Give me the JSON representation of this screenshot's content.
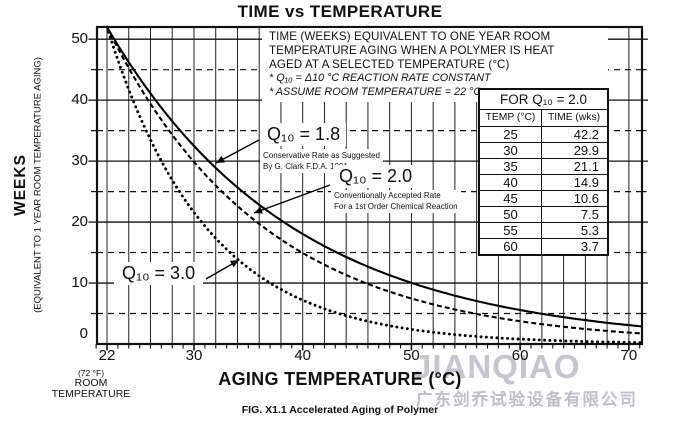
{
  "title": "TIME vs TEMPERATURE",
  "description": {
    "lines": [
      "TIME (WEEKS) EQUIVALENT TO ONE YEAR ROOM",
      "TEMPERATURE AGING WHEN A POLYMER IS HEAT",
      "AGED AT A SELECTED TEMPERATURE (°C)"
    ],
    "notes": [
      "* Q₁₀ = Δ10 °C REACTION RATE CONSTANT",
      "* ASSUME ROOM TEMPERATURE = 22 °C"
    ]
  },
  "y_axis": {
    "title": "WEEKS",
    "subtitle": "(EQUIVALENT TO 1 YEAR ROOM TEMPERATURE AGING)",
    "ticks": [
      0,
      10,
      20,
      30,
      40,
      50
    ],
    "minor_dashed": [
      5,
      15,
      25,
      35,
      45
    ]
  },
  "x_axis": {
    "title": "AGING TEMPERATURE (°C)",
    "ticks": [
      22,
      30,
      40,
      50,
      60,
      70
    ],
    "room_note": [
      "(72 °F)",
      "ROOM",
      "TEMPERATURE"
    ]
  },
  "annotations": {
    "q18_label": "Q₁₀ = 1.8",
    "q18_sub1": "Conservative Rate as Suggested",
    "q18_sub2": "By G. Clark F.D.A. 1991",
    "q20_label": "Q₁₀ = 2.0",
    "q20_sub1": "Conventionally Accepted Rate",
    "q20_sub2": "For a 1st Order Chemical Reaction",
    "q30_label": "Q₁₀ = 3.0"
  },
  "table": {
    "title": "FOR Q₁₀ = 2.0",
    "columns": [
      "TEMP (°C)",
      "TIME (wks)"
    ],
    "rows": [
      [
        "25",
        "42.2"
      ],
      [
        "30",
        "29.9"
      ],
      [
        "35",
        "21.1"
      ],
      [
        "40",
        "14.9"
      ],
      [
        "45",
        "10.6"
      ],
      [
        "50",
        "7.5"
      ],
      [
        "55",
        "5.3"
      ],
      [
        "60",
        "3.7"
      ]
    ]
  },
  "caption": "FIG. X1.1 Accelerated Aging of Polymer",
  "watermark": {
    "name": "JIANQIAO",
    "company": "广东剑乔试验设备有限公司"
  },
  "chart_data": {
    "type": "line",
    "title": "TIME vs TEMPERATURE",
    "xlabel": "AGING TEMPERATURE (°C)",
    "ylabel": "WEEKS (EQUIVALENT TO 1 YEAR ROOM TEMPERATURE AGING)",
    "xlim": [
      22,
      70
    ],
    "ylim": [
      0,
      52
    ],
    "grid": {
      "x_step_deg": 2,
      "y_solid_step": 10,
      "y_dashed_step": 10
    },
    "legend_position": "inline-labels",
    "x": [
      22,
      25,
      30,
      35,
      40,
      45,
      50,
      55,
      60,
      65,
      70
    ],
    "series": [
      {
        "name": "Q10 = 1.8",
        "q10": 1.8,
        "line_style": "solid",
        "values": [
          52,
          43.6,
          32.5,
          24.2,
          18.1,
          13.5,
          10.0,
          7.5,
          5.6,
          4.2,
          3.1
        ]
      },
      {
        "name": "Q10 = 2.0",
        "q10": 2.0,
        "line_style": "dashed",
        "values": [
          52,
          42.2,
          29.9,
          21.1,
          14.9,
          10.6,
          7.5,
          5.3,
          3.7,
          2.6,
          1.9
        ]
      },
      {
        "name": "Q10 = 3.0",
        "q10": 3.0,
        "line_style": "dotted",
        "values": [
          52,
          37.4,
          21.6,
          12.5,
          7.2,
          4.2,
          2.4,
          1.4,
          0.8,
          0.5,
          0.3
        ]
      }
    ]
  }
}
